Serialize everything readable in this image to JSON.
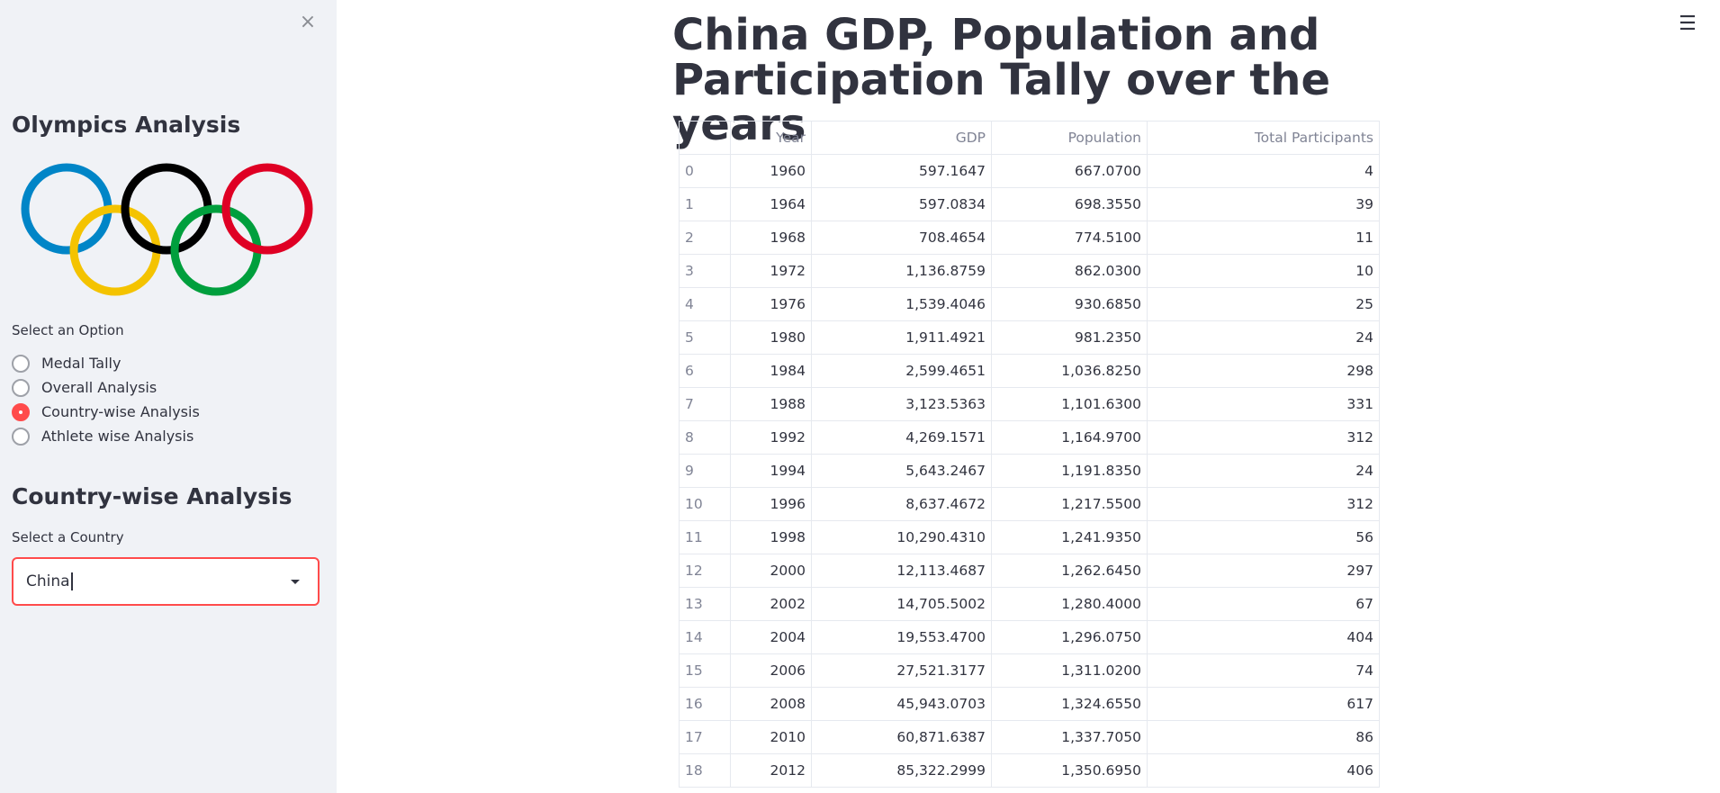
{
  "sidebar": {
    "close_icon": "×",
    "title": "Olympics Analysis",
    "option_label": "Select an Option",
    "options": [
      {
        "label": "Medal Tally",
        "selected": false
      },
      {
        "label": "Overall Analysis",
        "selected": false
      },
      {
        "label": "Country-wise Analysis",
        "selected": true
      },
      {
        "label": "Athlete wise Analysis",
        "selected": false
      }
    ],
    "section_title": "Country-wise Analysis",
    "country_label": "Select a Country",
    "country_value": "China"
  },
  "header": {
    "menu_icon": "☰"
  },
  "main": {
    "title": "China GDP, Population and Participation Tally over the years",
    "table": {
      "columns": [
        "",
        "Year",
        "GDP",
        "Population",
        "Total Participants"
      ],
      "rows": [
        [
          "0",
          "1960",
          "597.1647",
          "667.0700",
          "4"
        ],
        [
          "1",
          "1964",
          "597.0834",
          "698.3550",
          "39"
        ],
        [
          "2",
          "1968",
          "708.4654",
          "774.5100",
          "11"
        ],
        [
          "3",
          "1972",
          "1,136.8759",
          "862.0300",
          "10"
        ],
        [
          "4",
          "1976",
          "1,539.4046",
          "930.6850",
          "25"
        ],
        [
          "5",
          "1980",
          "1,911.4921",
          "981.2350",
          "24"
        ],
        [
          "6",
          "1984",
          "2,599.4651",
          "1,036.8250",
          "298"
        ],
        [
          "7",
          "1988",
          "3,123.5363",
          "1,101.6300",
          "331"
        ],
        [
          "8",
          "1992",
          "4,269.1571",
          "1,164.9700",
          "312"
        ],
        [
          "9",
          "1994",
          "5,643.2467",
          "1,191.8350",
          "24"
        ],
        [
          "10",
          "1996",
          "8,637.4672",
          "1,217.5500",
          "312"
        ],
        [
          "11",
          "1998",
          "10,290.4310",
          "1,241.9350",
          "56"
        ],
        [
          "12",
          "2000",
          "12,113.4687",
          "1,262.6450",
          "297"
        ],
        [
          "13",
          "2002",
          "14,705.5002",
          "1,280.4000",
          "67"
        ],
        [
          "14",
          "2004",
          "19,553.4700",
          "1,296.0750",
          "404"
        ],
        [
          "15",
          "2006",
          "27,521.3177",
          "1,311.0200",
          "74"
        ],
        [
          "16",
          "2008",
          "45,943.0703",
          "1,324.6550",
          "617"
        ],
        [
          "17",
          "2010",
          "60,871.6387",
          "1,337.7050",
          "86"
        ],
        [
          "18",
          "2012",
          "85,322.2999",
          "1,350.6950",
          "406"
        ]
      ]
    }
  }
}
